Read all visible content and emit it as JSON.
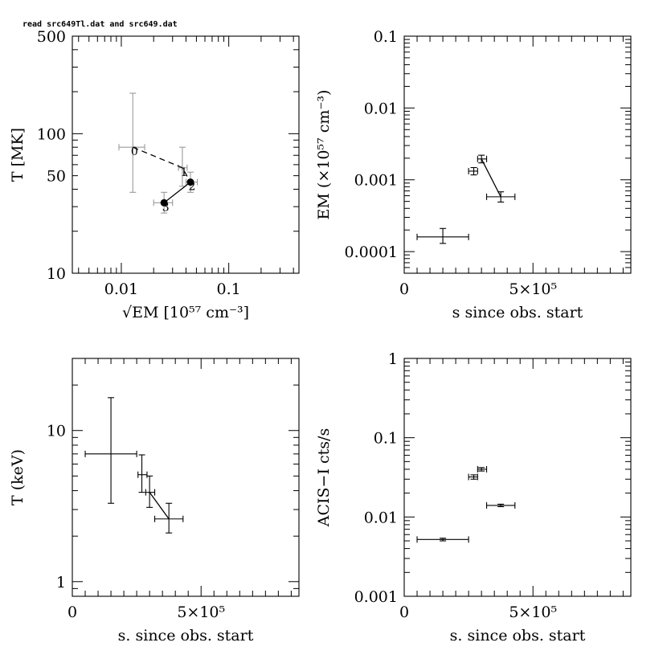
{
  "header": {
    "text": "read src649Tl.dat and src649.dat"
  },
  "chart_data": [
    {
      "id": "panel1",
      "type": "scatter",
      "xlabel": "√EM [10⁵⁷ cm⁻³]",
      "ylabel": "T [MK]",
      "xscale": "log",
      "yscale": "log",
      "xlim": [
        0.0035,
        0.45
      ],
      "ylim": [
        10,
        500
      ],
      "xticks": [
        {
          "v": 0.01,
          "label": "0.01"
        },
        {
          "v": 0.1,
          "label": "0.1"
        }
      ],
      "yticks": [
        {
          "v": 10,
          "label": "10"
        },
        {
          "v": 50,
          "label": "50"
        },
        {
          "v": 100,
          "label": "100"
        },
        {
          "v": 500,
          "label": "500"
        }
      ],
      "points": [
        {
          "label": "0",
          "x": 0.0128,
          "y": 80,
          "xerr": [
            0.0095,
            0.0165
          ],
          "yerr": [
            38,
            195
          ]
        },
        {
          "label": "1",
          "x": 0.037,
          "y": 57,
          "xerr": [
            0.034,
            0.041
          ],
          "yerr": [
            42,
            80
          ]
        },
        {
          "label": "2",
          "x": 0.044,
          "y": 45,
          "xerr": [
            0.04,
            0.051
          ],
          "yerr": [
            38,
            53
          ]
        },
        {
          "label": "3",
          "x": 0.025,
          "y": 32,
          "xerr": [
            0.02,
            0.03
          ],
          "yerr": [
            27,
            38
          ]
        }
      ],
      "dashed_path": [
        0,
        1,
        2
      ],
      "solid_path": [
        2,
        3
      ],
      "filled_markers": [
        2,
        3
      ]
    },
    {
      "id": "panel2",
      "type": "scatter",
      "xlabel": "s since obs. start",
      "ylabel": "EM  (×10⁵⁷ cm⁻³)",
      "xscale": "linear",
      "yscale": "log",
      "xlim": [
        0,
        880000
      ],
      "ylim": [
        5e-05,
        0.1
      ],
      "xticks": [
        {
          "v": 0,
          "label": "0"
        },
        {
          "v": 500000,
          "label": "5×10⁵"
        }
      ],
      "yticks": [
        {
          "v": 0.0001,
          "label": "0.0001"
        },
        {
          "v": 0.001,
          "label": "0.001"
        },
        {
          "v": 0.01,
          "label": "0.01"
        },
        {
          "v": 0.1,
          "label": "0.1"
        }
      ],
      "points": [
        {
          "x": 150000,
          "y": 0.00016,
          "xerr": [
            50000,
            250000
          ],
          "yerr": [
            0.00013,
            0.00021
          ]
        },
        {
          "x": 270000,
          "y": 0.00132,
          "xerr": [
            250000,
            285000
          ],
          "yerr": [
            0.00117,
            0.00148
          ]
        },
        {
          "x": 300000,
          "y": 0.00195,
          "xerr": [
            285000,
            320000
          ],
          "yerr": [
            0.00172,
            0.0022
          ]
        },
        {
          "x": 375000,
          "y": 0.00058,
          "xerr": [
            320000,
            430000
          ],
          "yerr": [
            0.00049,
            0.00068
          ]
        }
      ],
      "solid_path": [
        2,
        3
      ]
    },
    {
      "id": "panel3",
      "type": "scatter",
      "xlabel": "s. since obs. start",
      "ylabel": "T (keV)",
      "xscale": "linear",
      "yscale": "log",
      "xlim": [
        0,
        880000
      ],
      "ylim": [
        0.8,
        30
      ],
      "xticks": [
        {
          "v": 0,
          "label": "0"
        },
        {
          "v": 500000,
          "label": "5×10⁵"
        }
      ],
      "yticks": [
        {
          "v": 1,
          "label": "1"
        },
        {
          "v": 10,
          "label": "10"
        }
      ],
      "points": [
        {
          "x": 150000,
          "y": 7,
          "xerr": [
            50000,
            250000
          ],
          "yerr": [
            3.3,
            16.5
          ]
        },
        {
          "x": 270000,
          "y": 5.1,
          "xerr": [
            255000,
            290000
          ],
          "yerr": [
            3.9,
            6.9
          ]
        },
        {
          "x": 300000,
          "y": 3.9,
          "xerr": [
            285000,
            320000
          ],
          "yerr": [
            3.1,
            5.0
          ]
        },
        {
          "x": 375000,
          "y": 2.6,
          "xerr": [
            320000,
            430000
          ],
          "yerr": [
            2.1,
            3.3
          ]
        }
      ],
      "solid_path": [
        2,
        3
      ]
    },
    {
      "id": "panel4",
      "type": "scatter",
      "xlabel": "s. since obs. start",
      "ylabel": "ACIS−I cts/s",
      "xscale": "linear",
      "yscale": "log",
      "xlim": [
        0,
        880000
      ],
      "ylim": [
        0.001,
        1
      ],
      "xticks": [
        {
          "v": 0,
          "label": "0"
        },
        {
          "v": 500000,
          "label": "5×10⁵"
        }
      ],
      "yticks": [
        {
          "v": 0.001,
          "label": "0.001"
        },
        {
          "v": 0.01,
          "label": "0.01"
        },
        {
          "v": 0.1,
          "label": "0.1"
        },
        {
          "v": 1,
          "label": "1"
        }
      ],
      "points": [
        {
          "x": 150000,
          "y": 0.0052,
          "xerr": [
            50000,
            250000
          ],
          "yerr": [
            0.005,
            0.0054
          ]
        },
        {
          "x": 270000,
          "y": 0.032,
          "xerr": [
            250000,
            285000
          ],
          "yerr": [
            0.03,
            0.034
          ]
        },
        {
          "x": 300000,
          "y": 0.04,
          "xerr": [
            285000,
            320000
          ],
          "yerr": [
            0.038,
            0.042
          ]
        },
        {
          "x": 375000,
          "y": 0.014,
          "xerr": [
            320000,
            430000
          ],
          "yerr": [
            0.0135,
            0.0145
          ]
        }
      ],
      "solid_path": []
    }
  ]
}
